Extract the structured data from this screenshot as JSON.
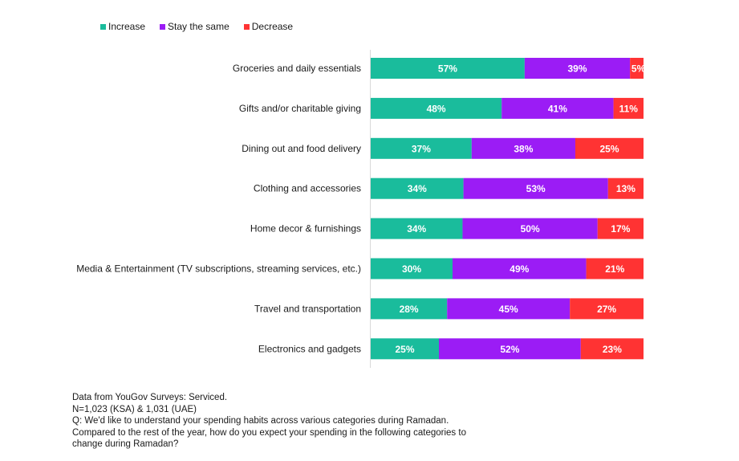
{
  "chart_data": {
    "type": "bar",
    "orientation": "horizontal",
    "stacked": true,
    "title": "",
    "xlabel": "",
    "ylabel": "",
    "xlim": [
      0,
      100
    ],
    "grid": false,
    "legend_position": "top-left",
    "categories": [
      "Groceries and daily essentials",
      "Gifts and/or charitable giving",
      "Dining out and food delivery",
      "Clothing and accessories",
      "Home decor & furnishings",
      "Media & Entertainment (TV subscriptions, streaming services, etc.)",
      "Travel and transportation",
      "Electronics and gadgets"
    ],
    "series": [
      {
        "name": "Increase",
        "color": "#1ABC9C",
        "values": [
          57,
          48,
          37,
          34,
          34,
          30,
          28,
          25
        ]
      },
      {
        "name": "Stay the same",
        "color": "#9B1CF5",
        "values": [
          39,
          41,
          38,
          53,
          50,
          49,
          45,
          52
        ]
      },
      {
        "name": "Decrease",
        "color": "#FF3333",
        "values": [
          5,
          11,
          25,
          13,
          17,
          21,
          27,
          23
        ]
      }
    ],
    "value_suffix": "%"
  },
  "footnote": {
    "lines": [
      "Data from YouGov Surveys: Serviced.",
      "N=1,023 (KSA) & 1,031 (UAE)",
      "Q: We'd like to understand your spending habits across various categories during Ramadan.",
      "Compared to the rest of the year, how do you expect your spending in the following categories to",
      "change during Ramadan?"
    ]
  }
}
